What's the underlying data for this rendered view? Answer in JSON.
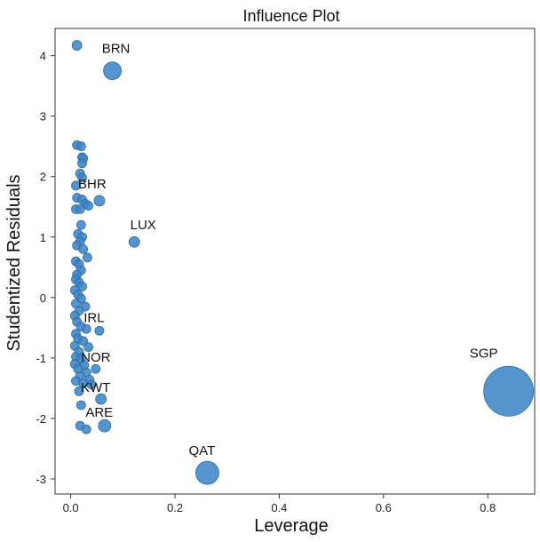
{
  "chart_data": {
    "type": "scatter",
    "title": "Influence Plot",
    "xlabel": "Leverage",
    "ylabel": "Studentized Residuals",
    "xlim": [
      -0.03,
      0.89
    ],
    "ylim": [
      -3.25,
      4.45
    ],
    "xticks": [
      "0.0",
      "0.2",
      "0.4",
      "0.6",
      "0.8"
    ],
    "xtick_values": [
      0.0,
      0.2,
      0.4,
      0.6,
      0.8
    ],
    "yticks": [
      "-3",
      "-2",
      "-1",
      "0",
      "1",
      "2",
      "3",
      "4"
    ],
    "ytick_values": [
      -3,
      -2,
      -1,
      0,
      1,
      2,
      3,
      4
    ],
    "grid": false,
    "marker_color": "#3d85c6",
    "labeled_points": [
      {
        "label": "BRN",
        "x": 0.08,
        "y": 3.75,
        "size": 10
      },
      {
        "label": "BHR",
        "x": 0.055,
        "y": 1.6,
        "size": 6
      },
      {
        "label": "LUX",
        "x": 0.122,
        "y": 0.92,
        "size": 6
      },
      {
        "label": "IRL",
        "x": 0.055,
        "y": -0.55,
        "size": 5
      },
      {
        "label": "NOR",
        "x": 0.048,
        "y": -1.18,
        "size": 5
      },
      {
        "label": "KWT",
        "x": 0.058,
        "y": -1.68,
        "size": 6
      },
      {
        "label": "ARE",
        "x": 0.065,
        "y": -2.12,
        "size": 7
      },
      {
        "label": "QAT",
        "x": 0.262,
        "y": -2.9,
        "size": 13
      },
      {
        "label": "SGP",
        "x": 0.84,
        "y": -1.55,
        "size": 28
      }
    ],
    "points": [
      {
        "x": 0.012,
        "y": 4.17,
        "size": 5.5
      },
      {
        "x": 0.012,
        "y": 2.52,
        "size": 5
      },
      {
        "x": 0.02,
        "y": 2.5,
        "size": 5
      },
      {
        "x": 0.022,
        "y": 2.32,
        "size": 5
      },
      {
        "x": 0.024,
        "y": 2.3,
        "size": 5
      },
      {
        "x": 0.022,
        "y": 2.22,
        "size": 5
      },
      {
        "x": 0.018,
        "y": 2.05,
        "size": 5
      },
      {
        "x": 0.022,
        "y": 1.98,
        "size": 5
      },
      {
        "x": 0.01,
        "y": 1.85,
        "size": 5
      },
      {
        "x": 0.012,
        "y": 1.65,
        "size": 5
      },
      {
        "x": 0.022,
        "y": 1.62,
        "size": 5
      },
      {
        "x": 0.028,
        "y": 1.55,
        "size": 5
      },
      {
        "x": 0.034,
        "y": 1.52,
        "size": 5
      },
      {
        "x": 0.01,
        "y": 1.46,
        "size": 5
      },
      {
        "x": 0.018,
        "y": 1.46,
        "size": 5
      },
      {
        "x": 0.02,
        "y": 1.2,
        "size": 5
      },
      {
        "x": 0.014,
        "y": 1.05,
        "size": 5
      },
      {
        "x": 0.022,
        "y": 1.0,
        "size": 5
      },
      {
        "x": 0.018,
        "y": 0.92,
        "size": 5
      },
      {
        "x": 0.012,
        "y": 0.86,
        "size": 5
      },
      {
        "x": 0.024,
        "y": 0.8,
        "size": 5
      },
      {
        "x": 0.032,
        "y": 0.66,
        "size": 5
      },
      {
        "x": 0.01,
        "y": 0.6,
        "size": 5
      },
      {
        "x": 0.016,
        "y": 0.55,
        "size": 5
      },
      {
        "x": 0.02,
        "y": 0.45,
        "size": 5
      },
      {
        "x": 0.012,
        "y": 0.38,
        "size": 5
      },
      {
        "x": 0.01,
        "y": 0.3,
        "size": 5
      },
      {
        "x": 0.016,
        "y": 0.25,
        "size": 5
      },
      {
        "x": 0.022,
        "y": 0.18,
        "size": 5
      },
      {
        "x": 0.008,
        "y": 0.12,
        "size": 5
      },
      {
        "x": 0.014,
        "y": 0.05,
        "size": 5
      },
      {
        "x": 0.02,
        "y": -0.02,
        "size": 5
      },
      {
        "x": 0.01,
        "y": -0.1,
        "size": 5
      },
      {
        "x": 0.028,
        "y": -0.15,
        "size": 5
      },
      {
        "x": 0.016,
        "y": -0.22,
        "size": 5
      },
      {
        "x": 0.008,
        "y": -0.3,
        "size": 5
      },
      {
        "x": 0.012,
        "y": -0.4,
        "size": 5
      },
      {
        "x": 0.02,
        "y": -0.48,
        "size": 5
      },
      {
        "x": 0.03,
        "y": -0.52,
        "size": 5
      },
      {
        "x": 0.01,
        "y": -0.6,
        "size": 5
      },
      {
        "x": 0.014,
        "y": -0.68,
        "size": 5
      },
      {
        "x": 0.024,
        "y": -0.72,
        "size": 5
      },
      {
        "x": 0.008,
        "y": -0.8,
        "size": 5
      },
      {
        "x": 0.034,
        "y": -0.82,
        "size": 5
      },
      {
        "x": 0.016,
        "y": -0.9,
        "size": 5
      },
      {
        "x": 0.01,
        "y": -0.98,
        "size": 5
      },
      {
        "x": 0.02,
        "y": -1.02,
        "size": 5
      },
      {
        "x": 0.008,
        "y": -1.1,
        "size": 5
      },
      {
        "x": 0.026,
        "y": -1.12,
        "size": 5
      },
      {
        "x": 0.014,
        "y": -1.18,
        "size": 5
      },
      {
        "x": 0.03,
        "y": -1.24,
        "size": 5
      },
      {
        "x": 0.018,
        "y": -1.3,
        "size": 5
      },
      {
        "x": 0.036,
        "y": -1.36,
        "size": 5
      },
      {
        "x": 0.01,
        "y": -1.38,
        "size": 5
      },
      {
        "x": 0.024,
        "y": -1.42,
        "size": 5
      },
      {
        "x": 0.04,
        "y": -1.44,
        "size": 5
      },
      {
        "x": 0.016,
        "y": -1.55,
        "size": 5
      },
      {
        "x": 0.02,
        "y": -1.78,
        "size": 5
      },
      {
        "x": 0.018,
        "y": -2.12,
        "size": 5
      },
      {
        "x": 0.03,
        "y": -2.18,
        "size": 5
      }
    ]
  }
}
